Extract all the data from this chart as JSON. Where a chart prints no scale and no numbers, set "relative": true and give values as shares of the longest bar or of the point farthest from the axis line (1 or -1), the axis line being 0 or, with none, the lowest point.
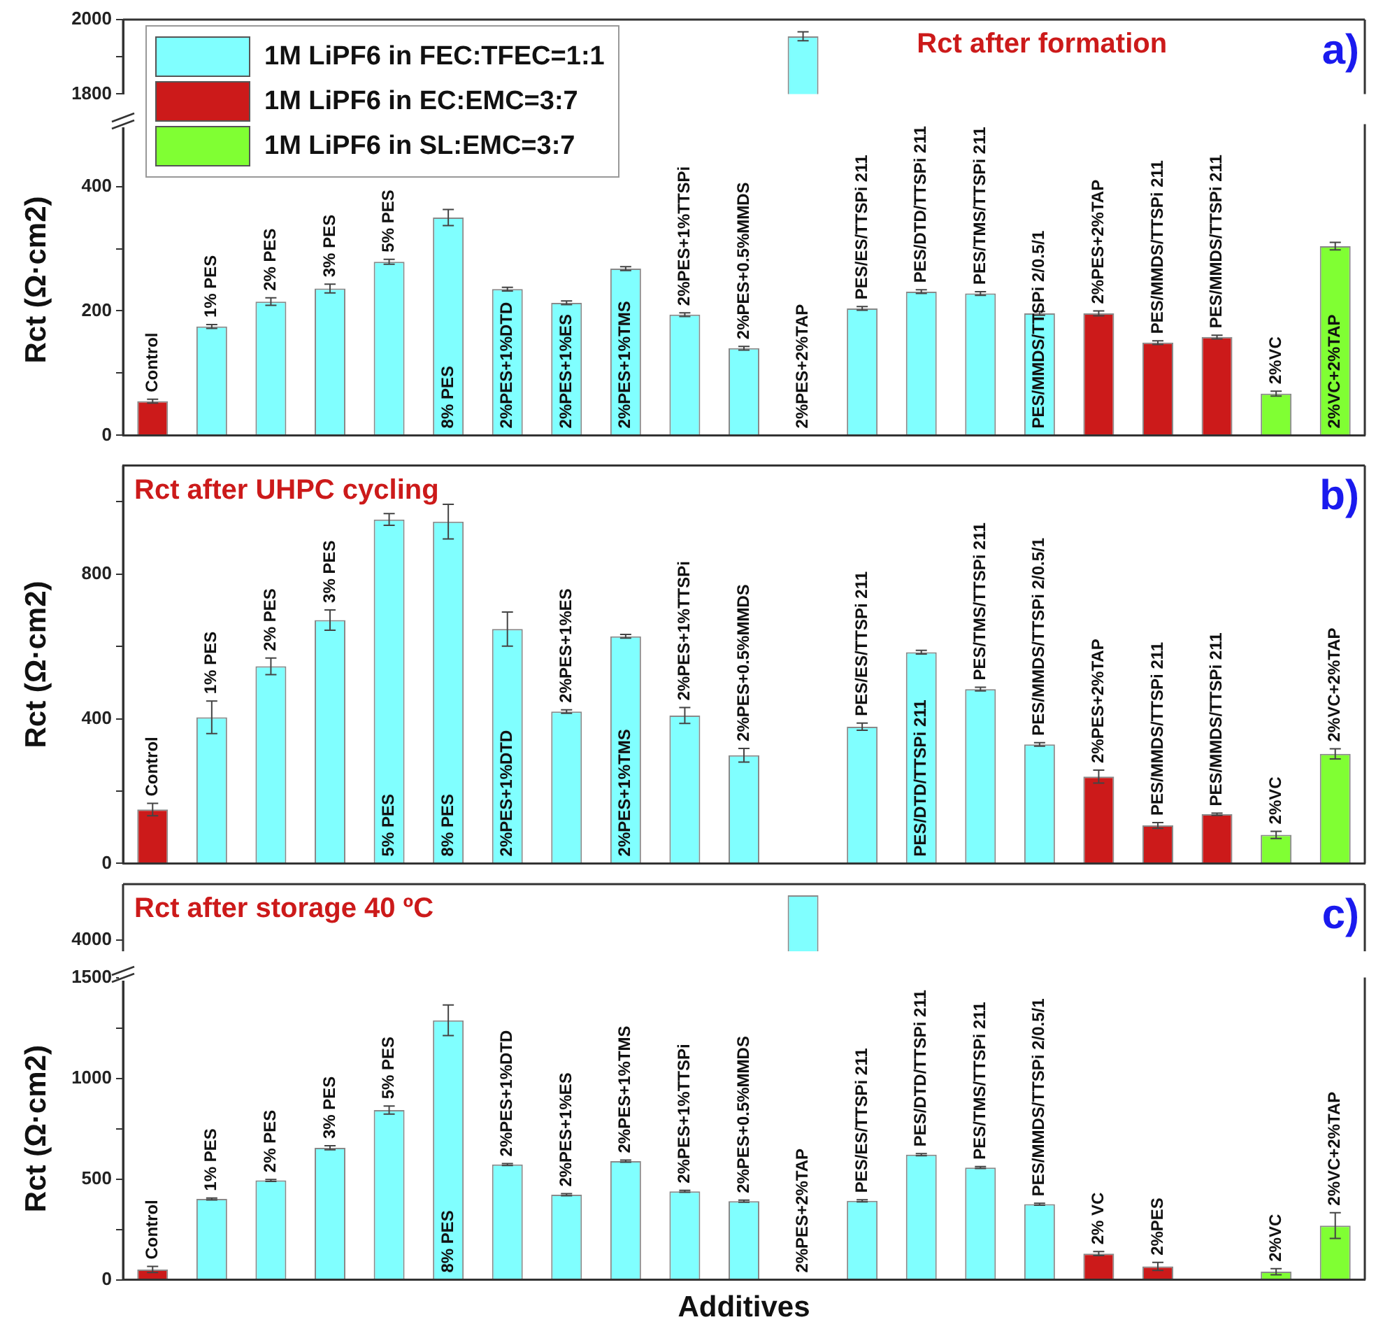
{
  "chart_data": [
    {
      "type": "bar",
      "title": "Rct after formation",
      "annotations": [
        "a)"
      ],
      "categories": [
        null,
        null,
        null,
        null,
        null,
        null,
        null,
        null,
        null,
        null,
        null,
        null,
        null,
        null,
        null,
        null,
        null,
        null,
        null,
        null,
        null
      ],
      "series": [
        {
          "color": "#80ffff",
          "values": [
            null,
            null,
            null,
            null,
            null,
            null,
            null,
            null,
            null,
            null,
            null,
            1955,
            null,
            null,
            null,
            null,
            null,
            null,
            null,
            null,
            null
          ],
          "errors": [
            null,
            null,
            null,
            null,
            null,
            null,
            null,
            null,
            null,
            null,
            null,
            12,
            null,
            null,
            null,
            null,
            null,
            null,
            null,
            null,
            null
          ]
        }
      ],
      "ylim": [
        1800,
        2000
      ],
      "yticks": [
        1800,
        {
          "value": 1900,
          "label": null
        },
        2000
      ],
      "tick_labels": "y"
    },
    {
      "type": "bar",
      "ylabel": "Rct (Ω·cm2)",
      "categories": [
        "Control",
        "1% PES",
        "2% PES",
        "3% PES",
        "5% PES",
        "8% PES",
        "2%PES+1%DTD",
        "2%PES+1%ES",
        "2%PES+1%TMS",
        "2%PES+1%TTSPi",
        "2%PES+0.5%MMDS",
        "2%PES+2%TAP",
        "PES/ES/TTSPi 211",
        "PES/DTD/TTSPi 211",
        "PES/TMS/TTSPi 211",
        "PES/MMDS/TTSPi 2/0.5/1",
        "2%PES+2%TAP",
        "PES/MMDS/TTSPi 211",
        "PES/MMDS/TTSPi 211",
        "2%VC",
        "2%VC+2%TAP"
      ],
      "series": [
        {
          "name": "1M LiPF6 in FEC:TFEC=1:1",
          "color": "#80ffff",
          "values": [
            null,
            175,
            215,
            236,
            279,
            350,
            235,
            213,
            268,
            194,
            140,
            null,
            204,
            231,
            228,
            196,
            null,
            null,
            null,
            null,
            null
          ],
          "errors": [
            null,
            3,
            6,
            7,
            4,
            13,
            3,
            3,
            3,
            3,
            3,
            null,
            3,
            3,
            3,
            3,
            null,
            null,
            null,
            null,
            null
          ]
        },
        {
          "name": "1M LiPF6 in EC:EMC=3:7",
          "color": "#cc1a1a",
          "values": [
            55,
            null,
            null,
            null,
            null,
            null,
            null,
            null,
            null,
            null,
            null,
            null,
            null,
            null,
            null,
            null,
            196,
            149,
            158,
            null,
            null
          ],
          "errors": [
            3,
            null,
            null,
            null,
            null,
            null,
            null,
            null,
            null,
            null,
            null,
            null,
            null,
            null,
            null,
            null,
            4,
            3,
            3,
            null,
            null
          ]
        },
        {
          "name": "1M LiPF6 in SL:EMC=3:7",
          "color": "#80ff33",
          "values": [
            null,
            null,
            null,
            null,
            null,
            null,
            null,
            null,
            null,
            null,
            null,
            null,
            null,
            null,
            null,
            null,
            null,
            null,
            null,
            67,
            304
          ],
          "errors": [
            null,
            null,
            null,
            null,
            null,
            null,
            null,
            null,
            null,
            null,
            null,
            null,
            null,
            null,
            null,
            null,
            null,
            null,
            null,
            4,
            6
          ]
        }
      ],
      "ylim": [
        0,
        500
      ],
      "yticks": [
        0,
        {
          "value": 100,
          "label": null
        },
        200,
        {
          "value": 300,
          "label": null
        },
        400
      ],
      "legend": "top left",
      "tick_labels": "y"
    },
    {
      "type": "bar",
      "title": "Rct after UHPC cycling",
      "ylabel": "Rct (Ω·cm2)",
      "annotations": [
        "b)"
      ],
      "categories": [
        "Control",
        "1% PES",
        "2% PES",
        "3% PES",
        "5% PES",
        "8% PES",
        "2%PES+1%DTD",
        "2%PES+1%ES",
        "2%PES+1%TMS",
        "2%PES+1%TTSPi",
        "2%PES+0.5%MMDS",
        null,
        "PES/ES/TTSPi 211",
        "PES/DTD/TTSPi 211",
        "PES/TMS/TTSPi 211",
        "PES/MMDS/TTSPi 2/0.5/1",
        "2%PES+2%TAP",
        "PES/MMDS/TTSPi 211",
        "PES/MMDS/TTSPi 211",
        "2%VC",
        "2%VC+2%TAP"
      ],
      "series": [
        {
          "color": "#80ffff",
          "values": [
            null,
            404,
            545,
            673,
            951,
            945,
            648,
            420,
            628,
            409,
            299,
            null,
            378,
            584,
            482,
            329,
            null,
            null,
            null,
            null,
            null
          ],
          "errors": [
            null,
            45,
            23,
            28,
            16,
            48,
            47,
            5,
            5,
            22,
            19,
            null,
            10,
            5,
            5,
            5,
            null,
            null,
            null,
            null,
            null
          ]
        },
        {
          "color": "#cc1a1a",
          "values": [
            149,
            null,
            null,
            null,
            null,
            null,
            null,
            null,
            null,
            null,
            null,
            null,
            null,
            null,
            null,
            null,
            240,
            105,
            136,
            null,
            null
          ],
          "errors": [
            17,
            null,
            null,
            null,
            null,
            null,
            null,
            null,
            null,
            null,
            null,
            null,
            null,
            null,
            null,
            null,
            18,
            8,
            3,
            null,
            null
          ]
        },
        {
          "color": "#80ff33",
          "values": [
            null,
            null,
            null,
            null,
            null,
            null,
            null,
            null,
            null,
            null,
            null,
            null,
            null,
            null,
            null,
            null,
            null,
            null,
            null,
            79,
            303
          ],
          "errors": [
            null,
            null,
            null,
            null,
            null,
            null,
            null,
            null,
            null,
            null,
            null,
            null,
            null,
            null,
            null,
            null,
            null,
            null,
            null,
            10,
            14
          ]
        }
      ],
      "ylim": [
        0,
        1100
      ],
      "yticks": [
        0,
        {
          "value": 200,
          "label": null
        },
        400,
        {
          "value": 600,
          "label": null
        },
        800,
        {
          "value": 1000,
          "label": null
        }
      ],
      "tick_labels": "y"
    },
    {
      "type": "bar",
      "title": "Rct after storage 40 ºC",
      "annotations": [
        "4000",
        "c)"
      ],
      "relative": true,
      "categories": [
        null,
        null,
        null,
        null,
        null,
        null,
        null,
        null,
        null,
        null,
        null,
        null,
        null,
        null,
        null,
        null,
        null,
        null,
        null,
        null,
        null
      ],
      "series": [
        {
          "color": "#80ffff",
          "values": [
            null,
            null,
            null,
            null,
            null,
            null,
            null,
            null,
            null,
            null,
            null,
            1,
            null,
            null,
            null,
            null,
            null,
            null,
            null,
            null,
            null
          ]
        }
      ],
      "tick_labels": "y"
    },
    {
      "type": "bar",
      "xlabel": "Additives",
      "ylabel": "Rct (Ω·cm2)",
      "categories": [
        "Control",
        "1% PES",
        "2% PES",
        "3% PES",
        "5% PES",
        "8% PES",
        "2%PES+1%DTD",
        "2%PES+1%ES",
        "2%PES+1%TMS",
        "2%PES+1%TTSPi",
        "2%PES+0.5%MMDS",
        "2%PES+2%TAP",
        "PES/ES/TTSPi 211",
        "PES/DTD/TTSPi 211",
        "PES/TMS/TTSPi 211",
        "PES/MMDS/TTSPi 2/0.5/1",
        "2% VC",
        "2%PES",
        null,
        "2%VC",
        "2%VC+2%TAP"
      ],
      "series": [
        {
          "color": "#80ffff",
          "values": [
            null,
            401,
            493,
            655,
            842,
            1288,
            572,
            422,
            589,
            439,
            390,
            null,
            392,
            621,
            557,
            375,
            null,
            null,
            null,
            null,
            null
          ],
          "errors": [
            null,
            5,
            5,
            10,
            20,
            76,
            5,
            5,
            5,
            5,
            5,
            null,
            5,
            5,
            5,
            5,
            null,
            null,
            null,
            null,
            null
          ]
        },
        {
          "color": "#cc1a1a",
          "values": [
            51,
            null,
            null,
            null,
            null,
            null,
            null,
            null,
            null,
            null,
            null,
            null,
            null,
            null,
            null,
            null,
            130,
            66,
            null,
            null,
            null
          ],
          "errors": [
            15,
            null,
            null,
            null,
            null,
            null,
            null,
            null,
            null,
            null,
            null,
            null,
            null,
            null,
            null,
            null,
            10,
            20,
            null,
            null,
            null
          ]
        },
        {
          "color": "#80ff33",
          "values": [
            null,
            null,
            null,
            null,
            null,
            null,
            null,
            null,
            null,
            null,
            null,
            null,
            null,
            null,
            null,
            null,
            null,
            null,
            null,
            40,
            269
          ],
          "errors": [
            null,
            null,
            null,
            null,
            null,
            null,
            null,
            null,
            null,
            null,
            null,
            null,
            null,
            null,
            null,
            null,
            null,
            null,
            null,
            15,
            64
          ]
        }
      ],
      "ylim": [
        0,
        1500
      ],
      "yticks": [
        0,
        {
          "value": 250,
          "label": null
        },
        500,
        {
          "value": 750,
          "label": null
        },
        1000,
        {
          "value": 1250,
          "label": null
        },
        1500
      ],
      "tick_labels": "y"
    }
  ]
}
